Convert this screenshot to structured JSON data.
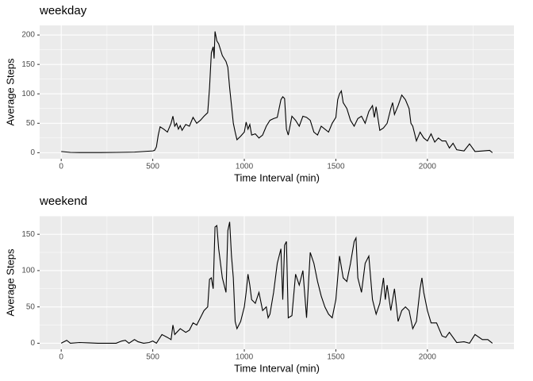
{
  "chart_data": [
    {
      "type": "line",
      "title": "weekday",
      "x_label": "Time Interval (min)",
      "y_label": "Average Steps",
      "color": "#000000",
      "grid": true,
      "xlim": [
        -117.75,
        2472.75
      ],
      "xticks": [
        0,
        500,
        1000,
        1500,
        2000
      ],
      "ylim": [
        -10.3,
        216.3
      ],
      "yticks": [
        0,
        50,
        100,
        150,
        200
      ],
      "x": [
        0,
        50,
        100,
        200,
        300,
        400,
        450,
        500,
        510,
        520,
        530,
        540,
        560,
        580,
        600,
        610,
        620,
        630,
        640,
        650,
        660,
        680,
        700,
        720,
        740,
        760,
        780,
        800,
        810,
        820,
        830,
        835,
        840,
        850,
        860,
        880,
        900,
        910,
        920,
        930,
        940,
        950,
        960,
        980,
        1000,
        1010,
        1020,
        1030,
        1040,
        1060,
        1080,
        1100,
        1120,
        1140,
        1160,
        1180,
        1200,
        1210,
        1220,
        1230,
        1240,
        1260,
        1280,
        1300,
        1320,
        1340,
        1360,
        1380,
        1400,
        1420,
        1440,
        1460,
        1480,
        1500,
        1510,
        1520,
        1530,
        1540,
        1560,
        1580,
        1600,
        1620,
        1640,
        1660,
        1680,
        1700,
        1710,
        1720,
        1740,
        1760,
        1780,
        1800,
        1810,
        1820,
        1840,
        1860,
        1880,
        1900,
        1910,
        1920,
        1940,
        1960,
        1980,
        2000,
        2020,
        2040,
        2060,
        2080,
        2100,
        2120,
        2140,
        2160,
        2200,
        2230,
        2260,
        2300,
        2340,
        2355
      ],
      "values": [
        2,
        0.5,
        0.3,
        0.2,
        0.5,
        1,
        2,
        3,
        4,
        10,
        30,
        44,
        40,
        35,
        50,
        62,
        45,
        50,
        40,
        46,
        38,
        48,
        45,
        60,
        50,
        55,
        62,
        68,
        110,
        170,
        180,
        160,
        206,
        190,
        185,
        165,
        155,
        145,
        110,
        80,
        50,
        35,
        22,
        28,
        35,
        52,
        40,
        48,
        30,
        32,
        25,
        30,
        45,
        55,
        58,
        60,
        90,
        95,
        92,
        40,
        30,
        62,
        55,
        45,
        62,
        60,
        55,
        35,
        30,
        45,
        40,
        35,
        50,
        60,
        90,
        100,
        105,
        85,
        75,
        55,
        45,
        58,
        62,
        50,
        70,
        80,
        60,
        78,
        38,
        42,
        50,
        75,
        85,
        65,
        80,
        98,
        90,
        75,
        50,
        45,
        20,
        35,
        25,
        20,
        32,
        18,
        25,
        20,
        20,
        8,
        16,
        5,
        3,
        15,
        2,
        3,
        4,
        0
      ]
    },
    {
      "type": "line",
      "title": "weekend",
      "x_label": "Time Interval (min)",
      "y_label": "Average Steps",
      "color": "#000000",
      "grid": true,
      "xlim": [
        -117.75,
        2472.75
      ],
      "xticks": [
        0,
        500,
        1000,
        1500,
        2000
      ],
      "ylim": [
        -8.3,
        175.3
      ],
      "yticks": [
        0,
        50,
        100,
        150
      ],
      "x": [
        0,
        30,
        50,
        100,
        150,
        200,
        300,
        330,
        350,
        370,
        400,
        420,
        450,
        480,
        500,
        520,
        550,
        580,
        600,
        610,
        620,
        650,
        680,
        700,
        720,
        740,
        760,
        780,
        800,
        810,
        820,
        830,
        840,
        850,
        860,
        870,
        880,
        900,
        910,
        920,
        930,
        940,
        950,
        960,
        980,
        1000,
        1010,
        1020,
        1030,
        1040,
        1060,
        1080,
        1100,
        1120,
        1130,
        1140,
        1160,
        1180,
        1200,
        1210,
        1220,
        1230,
        1240,
        1260,
        1280,
        1300,
        1320,
        1340,
        1360,
        1380,
        1400,
        1420,
        1440,
        1460,
        1480,
        1500,
        1520,
        1540,
        1560,
        1580,
        1600,
        1610,
        1620,
        1640,
        1660,
        1680,
        1700,
        1720,
        1740,
        1760,
        1770,
        1780,
        1800,
        1820,
        1840,
        1860,
        1880,
        1900,
        1920,
        1940,
        1960,
        1970,
        1980,
        2000,
        2020,
        2050,
        2080,
        2100,
        2120,
        2160,
        2200,
        2230,
        2260,
        2300,
        2330,
        2355
      ],
      "values": [
        0,
        4,
        0,
        1,
        0.5,
        0,
        0,
        3,
        4,
        0,
        5,
        2,
        0,
        1,
        3,
        0,
        12,
        8,
        5,
        25,
        12,
        20,
        15,
        18,
        28,
        25,
        35,
        45,
        50,
        88,
        90,
        75,
        160,
        162,
        130,
        110,
        90,
        70,
        155,
        167,
        120,
        90,
        30,
        20,
        30,
        50,
        70,
        95,
        80,
        60,
        55,
        70,
        45,
        50,
        35,
        40,
        70,
        110,
        130,
        60,
        135,
        140,
        35,
        38,
        95,
        80,
        100,
        35,
        125,
        110,
        85,
        65,
        50,
        40,
        35,
        60,
        120,
        90,
        85,
        110,
        140,
        145,
        90,
        70,
        110,
        120,
        60,
        40,
        55,
        90,
        60,
        80,
        45,
        75,
        30,
        45,
        50,
        45,
        20,
        30,
        75,
        90,
        70,
        45,
        28,
        28,
        10,
        8,
        15,
        1,
        2,
        0,
        12,
        5,
        5,
        0
      ]
    }
  ]
}
